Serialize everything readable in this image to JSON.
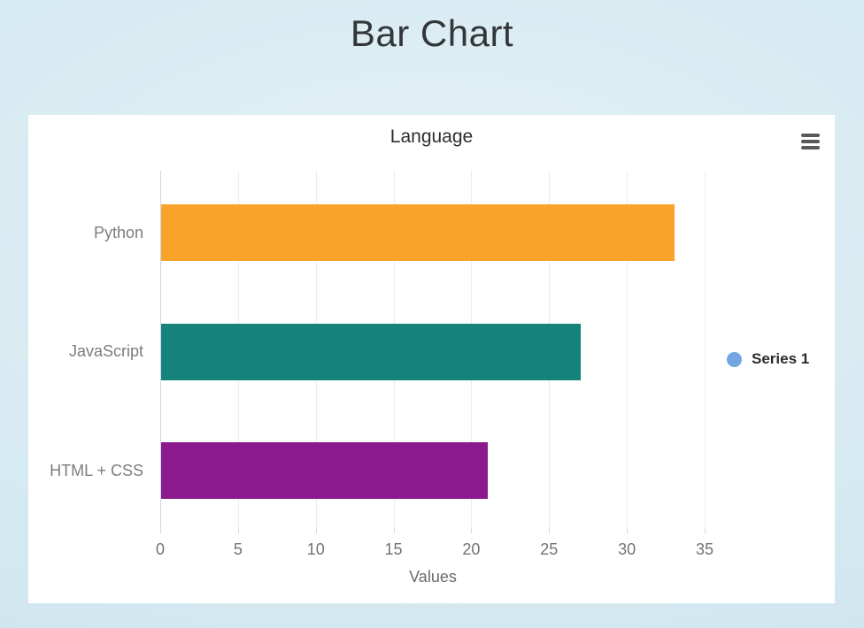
{
  "page": {
    "title": "Bar Chart"
  },
  "chart_data": {
    "type": "bar",
    "orientation": "horizontal",
    "title": "Language",
    "xlabel": "Values",
    "categories": [
      "Python",
      "JavaScript",
      "HTML + CSS"
    ],
    "series": [
      {
        "name": "Series 1",
        "values": [
          33,
          27,
          21
        ]
      }
    ],
    "bar_colors": [
      "#FAA32B",
      "#15827B",
      "#8A1A8E"
    ],
    "x_ticks": [
      0,
      5,
      10,
      15,
      20,
      25,
      30,
      35
    ],
    "xlim": [
      0,
      39
    ],
    "grid": "vertical",
    "legend": {
      "position": "right",
      "marker_color": "#72A5E1",
      "entries": [
        "Series 1"
      ]
    }
  },
  "colors": {
    "zero_axis_line": "#CCD7E8",
    "gridline": "#ECECEC",
    "panel_background": "#FFFFFF",
    "page_background": "#D2E7EF"
  }
}
